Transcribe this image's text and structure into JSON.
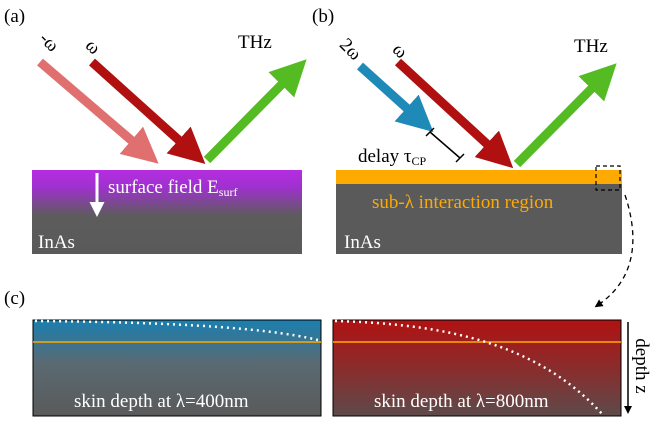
{
  "panel_a": {
    "label": "(a)",
    "beam_1": "-ω",
    "beam_2": "ω",
    "thz": "THz",
    "field_text": "surface field E",
    "field_sub": "surf",
    "material": "InAs"
  },
  "panel_b": {
    "label": "(b)",
    "beam_1": "2ω",
    "beam_2": "ω",
    "thz": "THz",
    "delay_text": "delay τ",
    "delay_sub": "CP",
    "region": "sub-λ interaction region",
    "material": "InAs"
  },
  "panel_c": {
    "label": "(c)",
    "left_caption": "skin depth at λ=400nm",
    "right_caption": "skin depth at λ=800nm",
    "axis_label": "depth z"
  }
}
